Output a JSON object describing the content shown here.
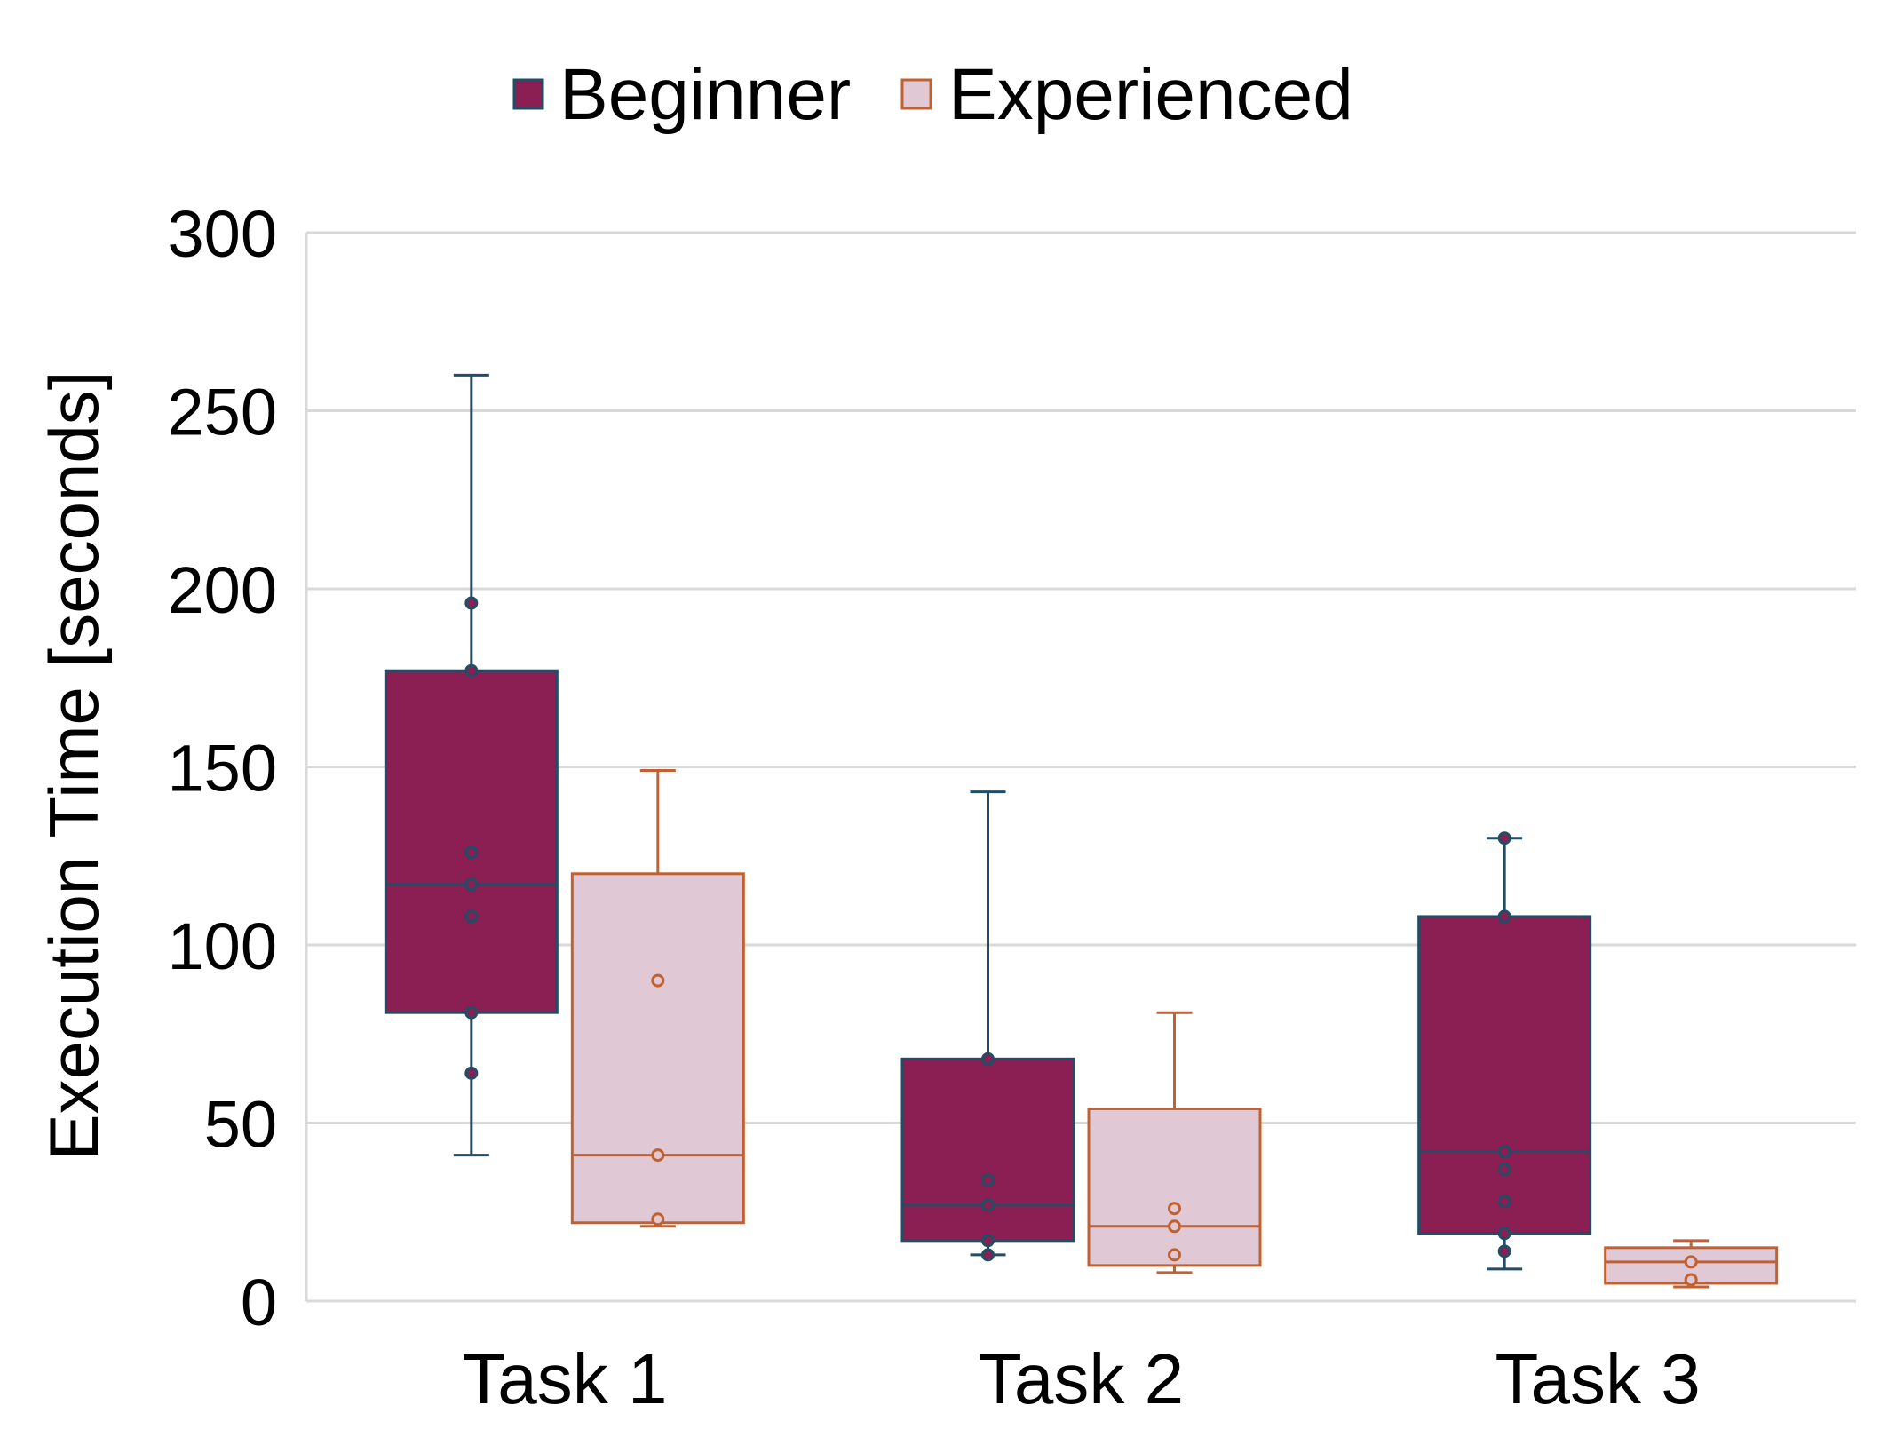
{
  "chart_data": {
    "type": "box",
    "ylabel": "Execution Time [seconds]",
    "ylim": [
      0,
      300
    ],
    "yticks": [
      "0",
      "50",
      "100",
      "150",
      "200",
      "250",
      "300"
    ],
    "categories": [
      "Task 1",
      "Task 2",
      "Task 3"
    ],
    "grid": true,
    "legend_position": "top-center",
    "series": [
      {
        "name": "Beginner",
        "fill": "#8b1e53",
        "stroke": "#1f4e66",
        "boxes": [
          {
            "min": 41,
            "q1": 81,
            "median": 117,
            "q3": 177,
            "max": 260,
            "points": [
              64,
              81,
              108,
              117,
              126,
              177,
              196
            ]
          },
          {
            "min": 13,
            "q1": 17,
            "median": 27,
            "q3": 68,
            "max": 143,
            "points": [
              13,
              17,
              27,
              34,
              68
            ]
          },
          {
            "min": 9,
            "q1": 19,
            "median": 42,
            "q3": 108,
            "max": 130,
            "points": [
              14,
              19,
              28,
              37,
              42,
              108,
              130
            ]
          }
        ]
      },
      {
        "name": "Experienced",
        "fill": "#e0c8d5",
        "stroke": "#c0612f",
        "boxes": [
          {
            "min": 21,
            "q1": 22,
            "median": 41,
            "q3": 120,
            "max": 149,
            "points": [
              23,
              41,
              90
            ]
          },
          {
            "min": 8,
            "q1": 10,
            "median": 21,
            "q3": 54,
            "max": 81,
            "points": [
              13,
              21,
              26
            ]
          },
          {
            "min": 4,
            "q1": 5,
            "median": 11,
            "q3": 15,
            "max": 17,
            "points": [
              6,
              11
            ]
          }
        ]
      }
    ]
  }
}
